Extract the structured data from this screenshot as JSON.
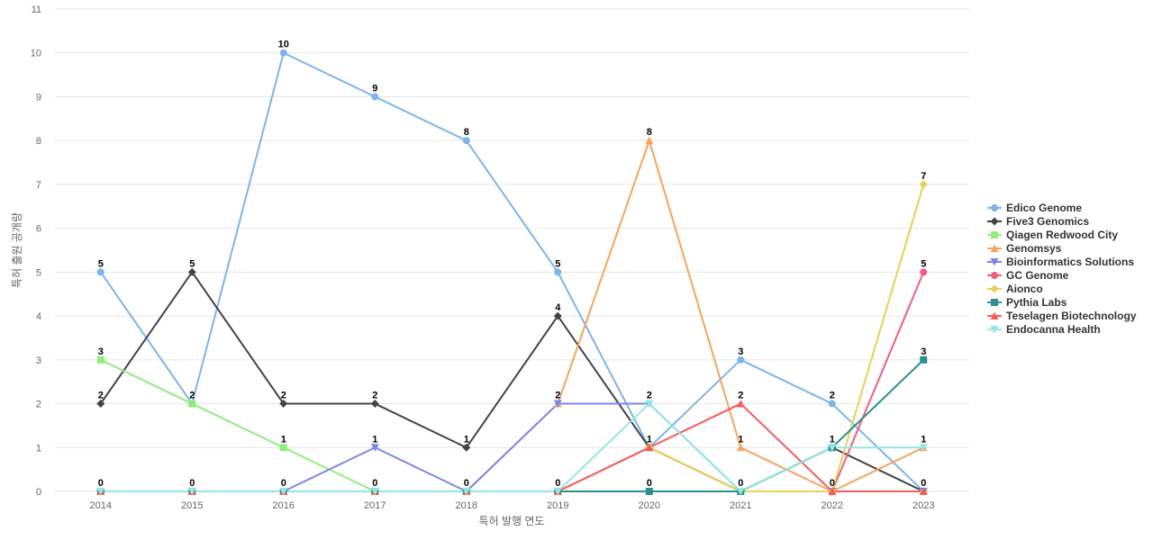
{
  "chart_data": {
    "type": "line",
    "title": "",
    "xlabel": "특허 발행 연도",
    "ylabel": "특허 출원 공개량",
    "ylim": [
      0,
      11
    ],
    "y_ticks": [
      0,
      1,
      2,
      3,
      4,
      5,
      6,
      7,
      8,
      9,
      10,
      11
    ],
    "grid": true,
    "legend_position": "right",
    "data_labels": true,
    "categories": [
      "2014",
      "2015",
      "2016",
      "2017",
      "2018",
      "2019",
      "2020",
      "2021",
      "2022",
      "2023"
    ],
    "series": [
      {
        "name": "Edico Genome",
        "color": "#7cb5ec",
        "marker": "circle",
        "values": [
          5,
          2,
          10,
          9,
          8,
          5,
          1,
          3,
          2,
          0
        ]
      },
      {
        "name": "Five3 Genomics",
        "color": "#434348",
        "marker": "diamond",
        "values": [
          2,
          5,
          2,
          2,
          1,
          4,
          1,
          0,
          1,
          0
        ]
      },
      {
        "name": "Qiagen Redwood City",
        "color": "#90ed7d",
        "marker": "square",
        "values": [
          3,
          2,
          1,
          0,
          0,
          0,
          0,
          0,
          0,
          0
        ]
      },
      {
        "name": "Genomsys",
        "color": "#f7a35c",
        "marker": "triangle",
        "values": [
          0,
          0,
          0,
          0,
          0,
          2,
          8,
          1,
          0,
          1
        ]
      },
      {
        "name": "Bioinformatics Solutions",
        "color": "#8085e9",
        "marker": "triangle-down",
        "values": [
          0,
          0,
          0,
          1,
          0,
          2,
          2,
          0,
          0,
          0
        ]
      },
      {
        "name": "GC Genome",
        "color": "#f15c80",
        "marker": "circle",
        "values": [
          0,
          0,
          0,
          0,
          0,
          0,
          1,
          0,
          0,
          5
        ]
      },
      {
        "name": "Aionco",
        "color": "#e4d354",
        "marker": "diamond",
        "values": [
          0,
          0,
          0,
          0,
          0,
          0,
          1,
          0,
          0,
          7
        ]
      },
      {
        "name": "Pythia Labs",
        "color": "#2b908f",
        "marker": "square",
        "values": [
          0,
          0,
          0,
          0,
          0,
          0,
          0,
          0,
          1,
          3
        ]
      },
      {
        "name": "Teselagen Biotechnology",
        "color": "#f45b5b",
        "marker": "triangle",
        "values": [
          0,
          0,
          0,
          0,
          0,
          0,
          1,
          2,
          0,
          0
        ]
      },
      {
        "name": "Endocanna Health",
        "color": "#91e8e1",
        "marker": "triangle-down",
        "values": [
          0,
          0,
          0,
          0,
          0,
          0,
          2,
          0,
          1,
          1
        ]
      }
    ],
    "point_labels": [
      {
        "x": "2014",
        "value": 5
      },
      {
        "x": "2014",
        "value": 3
      },
      {
        "x": "2014",
        "value": 2
      },
      {
        "x": "2014",
        "value": 0
      },
      {
        "x": "2015",
        "value": 5
      },
      {
        "x": "2015",
        "value": 2
      },
      {
        "x": "2015",
        "value": 0
      },
      {
        "x": "2016",
        "value": 10
      },
      {
        "x": "2016",
        "value": 2
      },
      {
        "x": "2016",
        "value": 1
      },
      {
        "x": "2016",
        "value": 0
      },
      {
        "x": "2017",
        "value": 9
      },
      {
        "x": "2017",
        "value": 2
      },
      {
        "x": "2017",
        "value": 1
      },
      {
        "x": "2017",
        "value": 0
      },
      {
        "x": "2018",
        "value": 8
      },
      {
        "x": "2018",
        "value": 1
      },
      {
        "x": "2018",
        "value": 0
      },
      {
        "x": "2019",
        "value": 5
      },
      {
        "x": "2019",
        "value": 4
      },
      {
        "x": "2019",
        "value": 2
      },
      {
        "x": "2019",
        "value": 0
      },
      {
        "x": "2020",
        "value": 8
      },
      {
        "x": "2020",
        "value": 2
      },
      {
        "x": "2020",
        "value": 1
      },
      {
        "x": "2020",
        "value": 0
      },
      {
        "x": "2021",
        "value": 3
      },
      {
        "x": "2021",
        "value": 2
      },
      {
        "x": "2021",
        "value": 1
      },
      {
        "x": "2021",
        "value": 0
      },
      {
        "x": "2022",
        "value": 2
      },
      {
        "x": "2022",
        "value": 1
      },
      {
        "x": "2022",
        "value": 0
      },
      {
        "x": "2023",
        "value": 7
      },
      {
        "x": "2023",
        "value": 5
      },
      {
        "x": "2023",
        "value": 3
      },
      {
        "x": "2023",
        "value": 1
      },
      {
        "x": "2023",
        "value": 0
      }
    ]
  }
}
